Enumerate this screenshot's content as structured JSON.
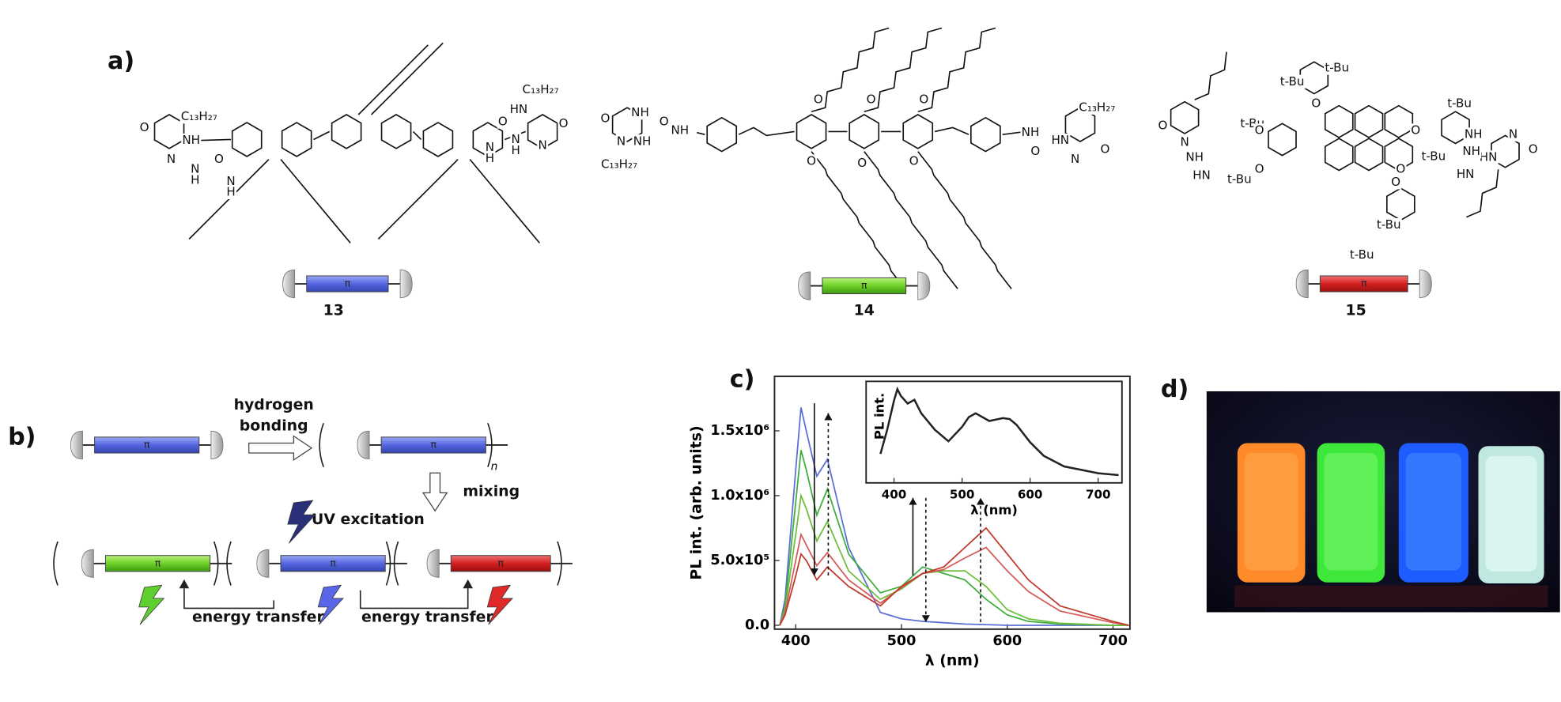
{
  "panel_labels": [
    "a)",
    "b)",
    "c)",
    "d)"
  ],
  "structures": [
    {
      "number": "13",
      "atoms": [
        "C₁₃H₂₇",
        "O",
        "NH",
        "N",
        "N",
        "H",
        "O",
        "N",
        "H",
        "C₁₃H₂₇",
        "HN",
        "O",
        "N",
        "N",
        "H",
        "O",
        "N",
        "H"
      ]
    },
    {
      "number": "14",
      "atoms": [
        "O",
        "N",
        "NH",
        "C₁₃H₂₇",
        "NH",
        "O",
        "NH",
        "O",
        "O",
        "O",
        "O",
        "O",
        "O",
        "NH",
        "O",
        "HN",
        "N",
        "C₁₃H₂₇",
        "O"
      ]
    },
    {
      "number": "15",
      "atoms": [
        "t-Bu",
        "t-Bu",
        "t-Bu",
        "t-Bu",
        "t-Bu",
        "t-Bu",
        "t-Bu",
        "t-Bu",
        "O",
        "O",
        "O",
        "O",
        "O",
        "O",
        "O",
        "N",
        "NH",
        "HN",
        "NH",
        "HN",
        "N",
        "O",
        "NH",
        "HN"
      ]
    }
  ],
  "rods": [
    "π",
    "π",
    "π",
    "π",
    "π",
    "π",
    "π",
    "π"
  ],
  "scheme": {
    "hydrogen_bonding": [
      "hydrogen",
      "bonding"
    ],
    "repeat": "n",
    "mixing": "mixing",
    "excitation": "UV excitation",
    "transfer": [
      "energy transfer",
      "energy transfer"
    ]
  },
  "chart_data": [
    {
      "type": "line",
      "x_label": "λ (nm)",
      "y_label": "PL int. (arb. units)",
      "x": [
        385,
        390,
        400,
        405,
        410,
        420,
        430,
        450,
        480,
        500,
        520,
        540,
        560,
        580,
        600,
        620,
        650,
        700,
        715
      ],
      "series": [
        {
          "color": "#5b6fd6",
          "values": [
            0,
            200000,
            1200000,
            1680000,
            1500000,
            1150000,
            1280000,
            600000,
            100000,
            50000,
            30000,
            20000,
            10000,
            5000,
            0,
            0,
            0,
            0,
            0
          ]
        },
        {
          "color": "#3fae3f",
          "values": [
            0,
            150000,
            950000,
            1350000,
            1200000,
            850000,
            1050000,
            550000,
            250000,
            300000,
            450000,
            400000,
            350000,
            200000,
            80000,
            30000,
            10000,
            0,
            0
          ]
        },
        {
          "color": "#6cbf3a",
          "values": [
            0,
            120000,
            700000,
            1000000,
            900000,
            650000,
            800000,
            420000,
            200000,
            280000,
            400000,
            420000,
            420000,
            300000,
            120000,
            50000,
            15000,
            0,
            0
          ]
        },
        {
          "color": "#d65a5a",
          "values": [
            0,
            100000,
            500000,
            700000,
            620000,
            460000,
            560000,
            350000,
            170000,
            290000,
            400000,
            430000,
            520000,
            600000,
            420000,
            260000,
            110000,
            20000,
            0
          ]
        },
        {
          "color": "#c0392b",
          "values": [
            0,
            80000,
            380000,
            550000,
            500000,
            350000,
            450000,
            300000,
            150000,
            300000,
            400000,
            450000,
            600000,
            750000,
            550000,
            350000,
            150000,
            30000,
            0
          ]
        }
      ],
      "xlim": [
        380,
        716
      ],
      "ylim": [
        -30000,
        1920000
      ],
      "xticks": [
        400,
        500,
        600,
        700
      ],
      "yticks": [
        {
          "value": 0,
          "label": "0.0"
        },
        {
          "value": 500000,
          "label": "5.0x10⁵"
        },
        {
          "value": 1000000,
          "label": "1.0x10⁶"
        },
        {
          "value": 1500000,
          "label": "1.5x10⁶"
        }
      ]
    },
    {
      "type": "line",
      "x_label": "λ (nm)",
      "y_label": "PL int.",
      "x": [
        380,
        390,
        400,
        405,
        410,
        420,
        430,
        440,
        460,
        480,
        500,
        510,
        520,
        540,
        560,
        570,
        580,
        600,
        620,
        650,
        700,
        730
      ],
      "series": [
        {
          "color": "#222222",
          "values": [
            0.3,
            0.55,
            0.85,
            0.97,
            0.9,
            0.82,
            0.86,
            0.72,
            0.55,
            0.43,
            0.58,
            0.68,
            0.72,
            0.64,
            0.67,
            0.66,
            0.6,
            0.42,
            0.28,
            0.17,
            0.1,
            0.08
          ]
        }
      ],
      "xlim": [
        359,
        735
      ],
      "ylim": [
        0,
        1.05
      ],
      "xticks": [
        400,
        500,
        600,
        700
      ]
    }
  ]
}
